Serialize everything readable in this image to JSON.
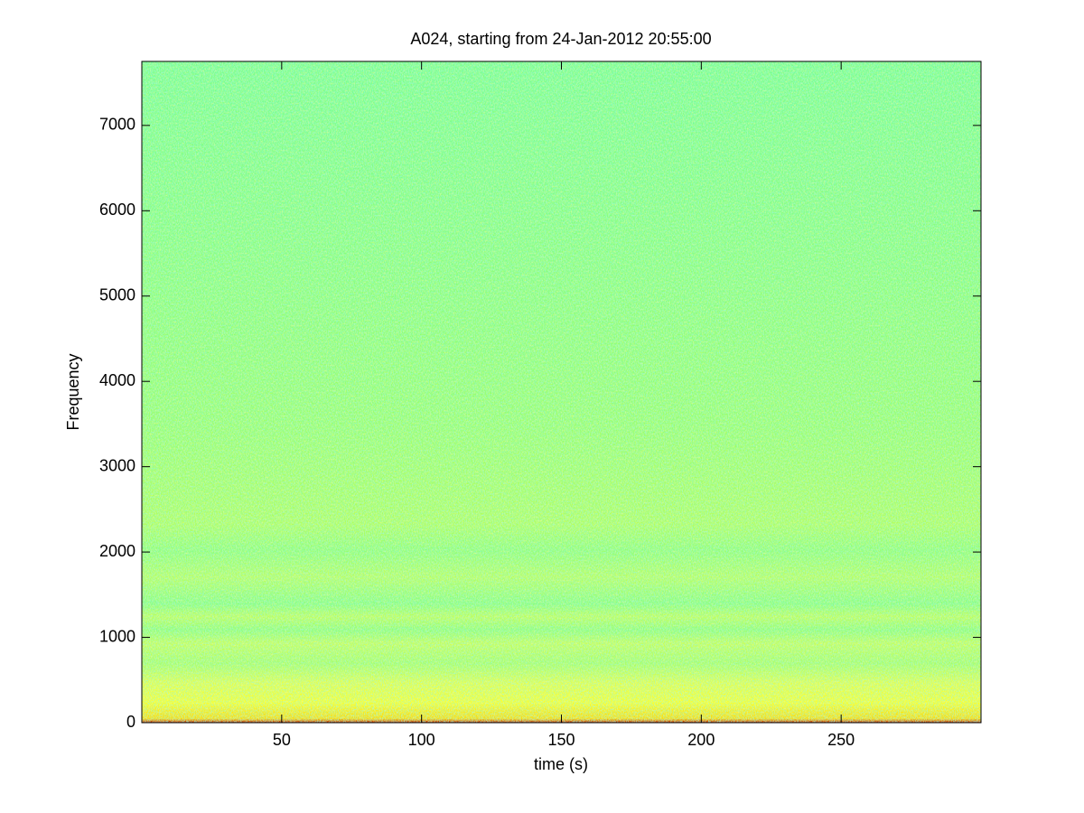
{
  "chart_data": {
    "type": "spectrogram",
    "title": "A024, starting from 24-Jan-2012 20:55:00",
    "x_label": "time (s)",
    "y_label": "Frequency",
    "xlim": [
      0,
      300
    ],
    "xticks": [
      50,
      100,
      150,
      200,
      250
    ],
    "ylim": [
      0,
      7750
    ],
    "yticks": [
      0,
      1000,
      2000,
      3000,
      4000,
      5000,
      6000,
      7000
    ],
    "grid": false
  }
}
